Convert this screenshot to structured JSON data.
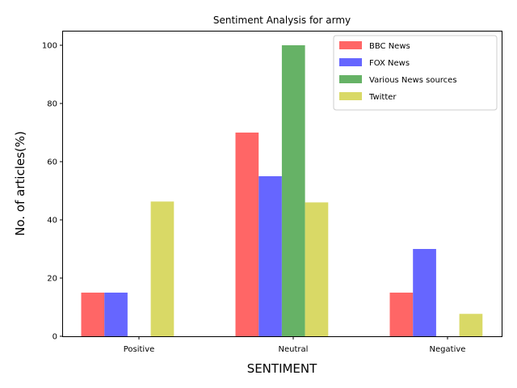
{
  "chart_data": {
    "type": "bar",
    "title": "Sentiment Analysis for army",
    "xlabel": "SENTIMENT",
    "ylabel": "No. of articles(%)",
    "categories": [
      "Positive",
      "Neutral",
      "Negative"
    ],
    "series": [
      {
        "name": "BBC News",
        "color": "#ff6666",
        "values": [
          15,
          70,
          15
        ]
      },
      {
        "name": "FOX News",
        "color": "#6666ff",
        "values": [
          15,
          55,
          30
        ]
      },
      {
        "name": "Various News sources",
        "color": "#66b266",
        "values": [
          0,
          100,
          0
        ]
      },
      {
        "name": "Twitter",
        "color": "#d9d966",
        "values": [
          46.3,
          46,
          7.7
        ]
      }
    ],
    "ylim": [
      0,
      105
    ],
    "yticks": [
      0,
      20,
      40,
      60,
      80,
      100
    ],
    "grid": false,
    "legend_position": "top-right"
  }
}
